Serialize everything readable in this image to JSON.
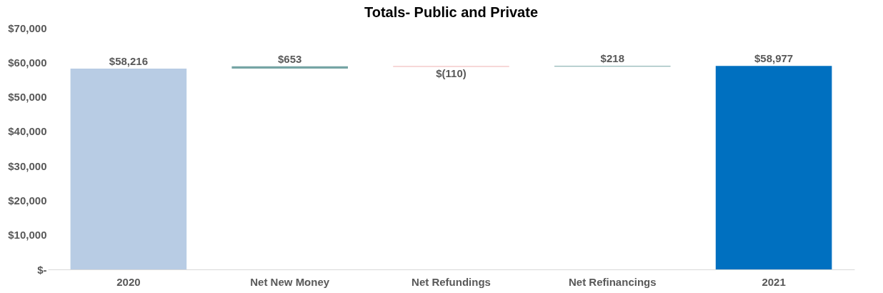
{
  "chart_data": {
    "type": "bar",
    "title": "Totals- Public and Private",
    "categories": [
      "2020",
      "Net New Money",
      "Net Refundings",
      "Net Refinancings",
      "2021"
    ],
    "values": [
      58216,
      653,
      -110,
      218,
      58977
    ],
    "base": [
      0,
      58216,
      58869,
      58759,
      0
    ],
    "colors": [
      "#b8cce4",
      "#76a5a5",
      "#e06666",
      "#76a5a5",
      "#0070c0"
    ],
    "value_labels": [
      "$58,216",
      "$653",
      "$(110)",
      "$218",
      "$58,977"
    ],
    "ylim": [
      0,
      70000
    ],
    "yticks": [
      {
        "value": 0,
        "label": "$-"
      },
      {
        "value": 10000,
        "label": "$10,000"
      },
      {
        "value": 20000,
        "label": "$20,000"
      },
      {
        "value": 30000,
        "label": "$30,000"
      },
      {
        "value": 40000,
        "label": "$40,000"
      },
      {
        "value": 50000,
        "label": "$50,000"
      },
      {
        "value": 60000,
        "label": "$60,000"
      },
      {
        "value": 70000,
        "label": "$70,000"
      }
    ],
    "grid": false
  }
}
